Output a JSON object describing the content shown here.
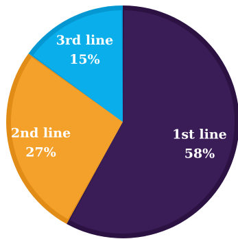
{
  "chart_data": {
    "type": "pie",
    "title": "",
    "start_angle_deg": 0,
    "direction": "clockwise",
    "slices": [
      {
        "label": "1st line",
        "value": 58,
        "value_label": "58%",
        "color": "#3a1c57",
        "edge_color": "#2b1243"
      },
      {
        "label": "2nd line",
        "value": 27,
        "value_label": "27%",
        "color": "#f3a12a",
        "edge_color": "#e08c17"
      },
      {
        "label": "3rd line",
        "value": 15,
        "value_label": "15%",
        "color": "#0aaeea",
        "edge_color": "#0597d2"
      }
    ],
    "legend": "none"
  }
}
